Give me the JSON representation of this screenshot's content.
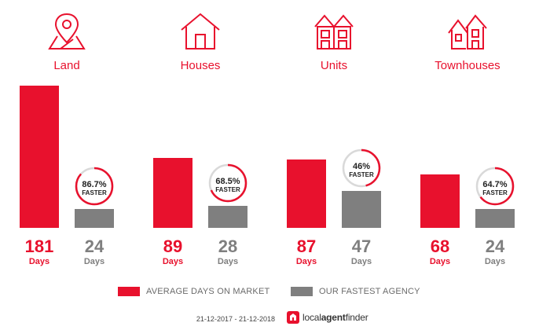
{
  "chart_data": {
    "type": "bar",
    "categories": [
      "Land",
      "Houses",
      "Units",
      "Townhouses"
    ],
    "series": [
      {
        "name": "AVERAGE DAYS ON MARKET",
        "values": [
          181,
          89,
          87,
          68
        ]
      },
      {
        "name": "OUR FASTEST AGENCY",
        "values": [
          24,
          28,
          47,
          24
        ]
      }
    ],
    "faster_percent": [
      86.7,
      68.5,
      46,
      64.7
    ],
    "faster_labels": [
      "86.7%",
      "68.5%",
      "46%",
      "64.7%"
    ],
    "faster_text": "FASTER",
    "unit_label": "Days",
    "ylim": [
      0,
      181
    ],
    "colors": {
      "market": "#e8112d",
      "agency": "#7f7f7f",
      "ring_track": "#d9d9d9"
    }
  },
  "icons": [
    "map-pin-icon",
    "house-icon",
    "units-icon",
    "townhouses-icon"
  ],
  "footer": {
    "date_range": "21-12-2017 - 21-12-2018",
    "logo_bold": "local",
    "logo_mid": "agent",
    "logo_end": "finder"
  }
}
